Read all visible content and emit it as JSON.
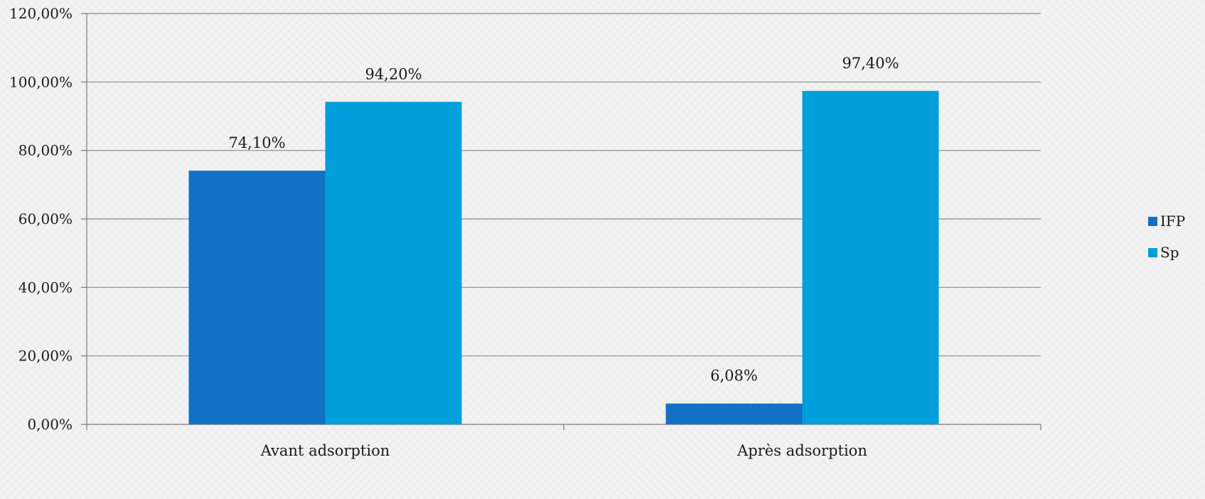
{
  "chart_data": {
    "type": "bar",
    "categories": [
      "Avant adsorption",
      "Après adsorption"
    ],
    "series": [
      {
        "name": "IFP",
        "values": [
          74.1,
          6.08
        ],
        "labels": [
          "74,10%",
          "6,08%"
        ],
        "color": "#1270c5"
      },
      {
        "name": "Sp",
        "values": [
          94.2,
          97.4
        ],
        "labels": [
          "94,20%",
          "97,40%"
        ],
        "color": "#009fdb"
      }
    ],
    "ylim": [
      0,
      120
    ],
    "yticks": [
      0,
      20,
      40,
      60,
      80,
      100,
      120
    ],
    "ytick_labels": [
      "0,00%",
      "20,00%",
      "40,00%",
      "60,00%",
      "80,00%",
      "100,00%",
      "120,00%"
    ],
    "grid": true,
    "legend_position": "right",
    "title": "",
    "xlabel": "",
    "ylabel": ""
  }
}
